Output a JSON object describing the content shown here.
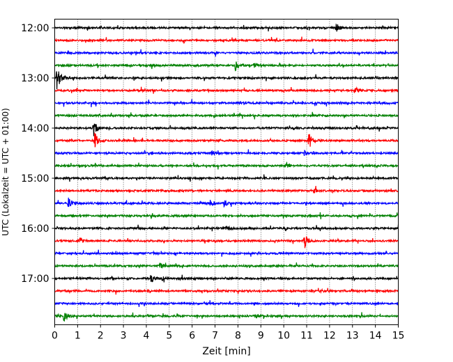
{
  "chart_data": {
    "type": "line",
    "title": "",
    "xlabel": "Zeit  [min]",
    "ylabel": "UTC (Lokalzeit = UTC + 01:00)",
    "xlim": [
      0,
      15
    ],
    "x_ticks": [
      "0",
      "1",
      "2",
      "3",
      "4",
      "5",
      "6",
      "7",
      "8",
      "9",
      "10",
      "11",
      "12",
      "13",
      "14",
      "15"
    ],
    "y_tick_labels": [
      "12:00",
      "13:00",
      "14:00",
      "15:00",
      "16:00",
      "17:00"
    ],
    "grid": "vertical dotted",
    "trace_interval_min": 15,
    "colors": [
      "#000000",
      "#ff0000",
      "#0000ff",
      "#008000"
    ],
    "traces": [
      {
        "start": "12:00",
        "color": "#000000",
        "events": [
          [
            12.3,
            0.5
          ]
        ]
      },
      {
        "start": "12:15",
        "color": "#ff0000",
        "events": []
      },
      {
        "start": "12:30",
        "color": "#0000ff",
        "events": []
      },
      {
        "start": "12:45",
        "color": "#008000",
        "events": [
          [
            7.9,
            0.7
          ],
          [
            8.7,
            0.4
          ]
        ]
      },
      {
        "start": "13:00",
        "color": "#000000",
        "events": [
          [
            0.1,
            1.6
          ]
        ]
      },
      {
        "start": "13:15",
        "color": "#ff0000",
        "events": [
          [
            13.1,
            0.4
          ]
        ]
      },
      {
        "start": "13:30",
        "color": "#0000ff",
        "events": []
      },
      {
        "start": "13:45",
        "color": "#008000",
        "events": []
      },
      {
        "start": "14:00",
        "color": "#000000",
        "events": [
          [
            1.7,
            0.9
          ]
        ]
      },
      {
        "start": "14:15",
        "color": "#ff0000",
        "events": [
          [
            1.75,
            1.0
          ],
          [
            11.1,
            1.1
          ]
        ]
      },
      {
        "start": "14:30",
        "color": "#0000ff",
        "events": [
          [
            6.8,
            0.4
          ],
          [
            10.9,
            0.3
          ]
        ]
      },
      {
        "start": "14:45",
        "color": "#008000",
        "events": [
          [
            10.1,
            0.4
          ]
        ]
      },
      {
        "start": "15:00",
        "color": "#000000",
        "events": []
      },
      {
        "start": "15:15",
        "color": "#ff0000",
        "events": [
          [
            11.3,
            0.4
          ]
        ]
      },
      {
        "start": "15:30",
        "color": "#0000ff",
        "events": [
          [
            0.6,
            0.6
          ],
          [
            6.8,
            0.4
          ],
          [
            7.4,
            0.4
          ]
        ]
      },
      {
        "start": "15:45",
        "color": "#008000",
        "events": []
      },
      {
        "start": "16:00",
        "color": "#000000",
        "events": [
          [
            7.5,
            0.3
          ]
        ]
      },
      {
        "start": "16:15",
        "color": "#ff0000",
        "events": [
          [
            1.1,
            0.4
          ],
          [
            10.9,
            1.0
          ]
        ]
      },
      {
        "start": "16:30",
        "color": "#0000ff",
        "events": []
      },
      {
        "start": "16:45",
        "color": "#008000",
        "events": [
          [
            4.6,
            0.5
          ]
        ]
      },
      {
        "start": "17:00",
        "color": "#000000",
        "events": [
          [
            4.2,
            0.6
          ],
          [
            4.7,
            0.3
          ]
        ]
      },
      {
        "start": "17:15",
        "color": "#ff0000",
        "events": []
      },
      {
        "start": "17:30",
        "color": "#0000ff",
        "events": []
      },
      {
        "start": "17:45",
        "color": "#008000",
        "events": [
          [
            0.4,
            0.7
          ],
          [
            8.8,
            0.3
          ]
        ]
      }
    ]
  }
}
